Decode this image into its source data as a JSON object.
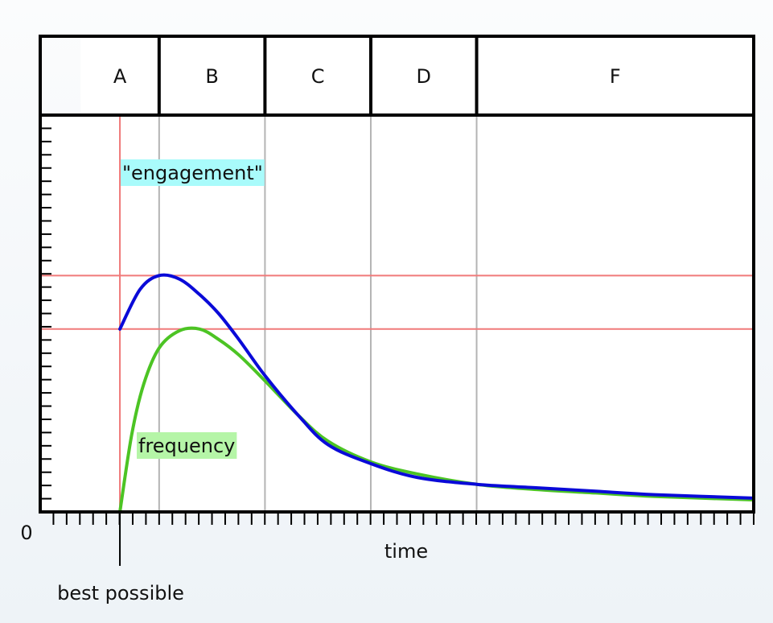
{
  "chart_data": {
    "type": "line",
    "title": "",
    "xlabel": "time",
    "ylabel": "",
    "origin_label": "0",
    "x_marker": {
      "x": 0,
      "label": "best possible"
    },
    "bands": [
      {
        "label": "A",
        "from": -0.33,
        "to": 0.33
      },
      {
        "label": "B",
        "from": 0.33,
        "to": 1.22
      },
      {
        "label": "C",
        "from": 1.22,
        "to": 2.11
      },
      {
        "label": "D",
        "from": 2.11,
        "to": 3.0
      },
      {
        "label": "F",
        "from": 3.0,
        "to": 5.33
      }
    ],
    "reference_lines_y": [
      13.7,
      10.6
    ],
    "xlim": [
      -0.67,
      5.33
    ],
    "ylim": [
      0,
      23
    ],
    "grid": false,
    "series": [
      {
        "name": "\"engagement\"",
        "color": "#0a0ad8",
        "x": [
          0,
          0.17,
          0.33,
          0.5,
          0.67,
          0.83,
          1.0,
          1.22,
          1.5,
          1.75,
          2.11,
          2.5,
          3.0,
          3.5,
          4.0,
          4.5,
          5.33
        ],
        "y": [
          10.6,
          12.9,
          13.7,
          13.5,
          12.6,
          11.5,
          10.0,
          7.9,
          5.6,
          3.9,
          2.8,
          2.0,
          1.6,
          1.4,
          1.2,
          1.0,
          0.8
        ]
      },
      {
        "name": "frequency",
        "color": "#4cc424",
        "x": [
          0,
          0.1,
          0.2,
          0.33,
          0.5,
          0.67,
          0.83,
          1.0,
          1.22,
          1.5,
          1.75,
          2.11,
          2.5,
          3.0,
          3.5,
          4.0,
          4.5,
          5.33
        ],
        "y": [
          0,
          4.5,
          7.4,
          9.5,
          10.5,
          10.6,
          10.0,
          9.1,
          7.6,
          5.6,
          4.1,
          2.9,
          2.2,
          1.6,
          1.3,
          1.1,
          0.9,
          0.7
        ]
      }
    ],
    "series_label_colors": [
      "#a9fbfb",
      "#b5f5a7"
    ]
  }
}
